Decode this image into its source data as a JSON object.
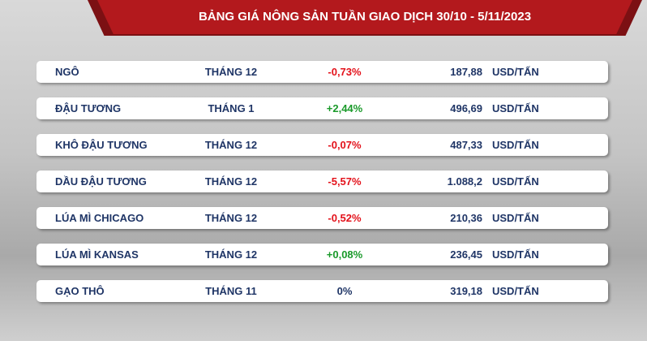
{
  "header": {
    "title": "BẢNG GIÁ NÔNG SẢN TUẦN GIAO DỊCH 30/10 - 5/11/2023"
  },
  "table": {
    "rows": [
      [
        "NGÔ",
        "THÁNG 12",
        "-0,73%",
        "187,88",
        "USD/TẤN"
      ],
      [
        "ĐẬU TƯƠNG",
        "THÁNG 1",
        "+2,44%",
        "496,69",
        "USD/TẤN"
      ],
      [
        "KHÔ ĐẬU TƯƠNG",
        "THÁNG 12",
        "-0,07%",
        "487,33",
        "USD/TẤN"
      ],
      [
        "DẦU ĐẬU TƯƠNG",
        "THÁNG 12",
        "-5,57%",
        "1.088,2",
        "USD/TẤN"
      ],
      [
        "LÚA MÌ CHICAGO",
        "THÁNG 12",
        "-0,52%",
        "210,36",
        "USD/TẤN"
      ],
      [
        "LÚA MÌ KANSAS",
        "THÁNG 12",
        "+0,08%",
        "236,45",
        "USD/TẤN"
      ],
      [
        "GẠO THÔ",
        "THÁNG 11",
        "0%",
        "319,18",
        "USD/TẤN"
      ]
    ]
  }
}
